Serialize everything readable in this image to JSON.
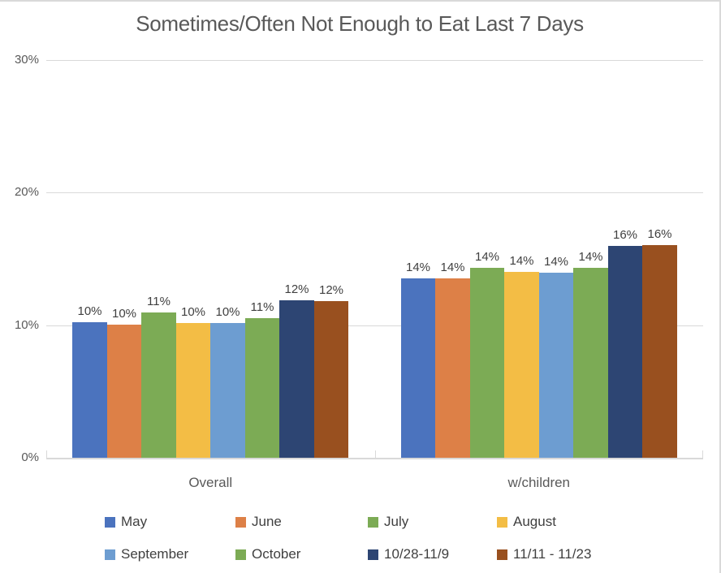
{
  "chart_data": {
    "type": "bar",
    "title": "Sometimes/Often Not Enough to Eat Last 7 Days",
    "categories": [
      "Overall",
      "w/children"
    ],
    "series": [
      {
        "name": "May",
        "color": "#4B73BE",
        "values": [
          10.2,
          13.55
        ],
        "labels": [
          "10%",
          "14%"
        ]
      },
      {
        "name": "June",
        "color": "#DD8047",
        "values": [
          10.05,
          13.55
        ],
        "labels": [
          "10%",
          "14%"
        ]
      },
      {
        "name": "July",
        "color": "#7CAB55",
        "values": [
          10.95,
          14.3
        ],
        "labels": [
          "11%",
          "14%"
        ]
      },
      {
        "name": "August",
        "color": "#F3BD45",
        "values": [
          10.15,
          14.05
        ],
        "labels": [
          "10%",
          "14%"
        ]
      },
      {
        "name": "September",
        "color": "#6D9DD1",
        "values": [
          10.15,
          13.95
        ],
        "labels": [
          "10%",
          "14%"
        ]
      },
      {
        "name": "October",
        "color": "#7CAB55",
        "values": [
          10.55,
          14.3
        ],
        "labels": [
          "11%",
          "14%"
        ]
      },
      {
        "name": "10/28-11/9",
        "color": "#2D4573",
        "values": [
          11.9,
          16.0
        ],
        "labels": [
          "12%",
          "16%"
        ]
      },
      {
        "name": "11/11 - 11/23",
        "color": "#99501F",
        "values": [
          11.8,
          16.05
        ],
        "labels": [
          "12%",
          "16%"
        ]
      }
    ],
    "y_ticks": [
      {
        "label": "0%",
        "value": 0
      },
      {
        "label": "10%",
        "value": 10
      },
      {
        "label": "20%",
        "value": 20
      },
      {
        "label": "30%",
        "value": 30
      }
    ],
    "ylim": [
      0,
      30
    ],
    "grid": true,
    "legend_position": "bottom",
    "colors": {
      "gridline": "#d9d9d9",
      "axis_text": "#595959",
      "label_text": "#404040",
      "title_text": "#595959"
    }
  }
}
